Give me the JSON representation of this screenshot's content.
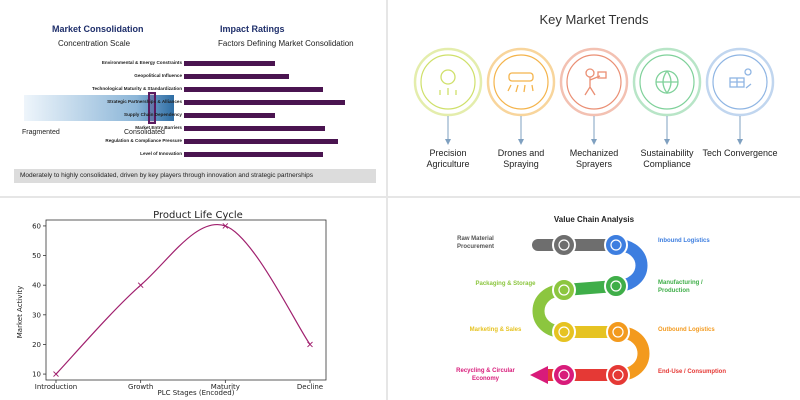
{
  "consolidation": {
    "title": "Market Consolidation",
    "subtitle": "Concentration Scale",
    "scale_left": "Fragmented",
    "scale_right": "Consolidated",
    "marker_position": 0.85,
    "ratings_title": "Impact Ratings",
    "ratings_subtitle": "Factors Defining Market Consolidation",
    "factors": [
      {
        "label": "Environmental & Energy Constraints",
        "value": 0.55
      },
      {
        "label": "Geopolitical Influence",
        "value": 0.63
      },
      {
        "label": "Technological Maturity & Standardization",
        "value": 0.84
      },
      {
        "label": "Strategic Partnerships & Alliances",
        "value": 0.97
      },
      {
        "label": "Supply Chain Dependency",
        "value": 0.55
      },
      {
        "label": "Market Entry Barriers",
        "value": 0.85
      },
      {
        "label": "Regulation & Compliance Pressure",
        "value": 0.93
      },
      {
        "label": "Level of Innovation",
        "value": 0.84
      }
    ],
    "summary": "Moderately to highly consolidated, driven by key players through innovation and strategic partnerships",
    "colors": {
      "bar": "#4a1450",
      "title": "#1f2f6b"
    }
  },
  "trends": {
    "title": "Key Market Trends",
    "items": [
      {
        "label": "Precision Agriculture",
        "color": "#cfe06a",
        "icon": "leaf-hand-icon"
      },
      {
        "label": "Drones and Spraying",
        "color": "#f4b44c",
        "icon": "drone-icon"
      },
      {
        "label": "Mechanized Sprayers",
        "color": "#ea8f74",
        "icon": "sprayer-worker-icon"
      },
      {
        "label": "Sustainability Compliance",
        "color": "#7fd19a",
        "icon": "globe-leaf-icon"
      },
      {
        "label": "Tech Convergence",
        "color": "#8fb5e3",
        "icon": "solar-tech-icon"
      }
    ]
  },
  "chart_data": {
    "type": "line",
    "title": "Product Life Cycle",
    "xlabel": "PLC Stages (Encoded)",
    "ylabel": "Market Activity",
    "categories": [
      "Introduction",
      "Growth",
      "Maturity",
      "Decline"
    ],
    "series": [
      {
        "name": "Market Activity",
        "values": [
          10,
          40,
          60,
          20
        ]
      }
    ],
    "ylim": [
      8,
      62
    ],
    "yticks": [
      "10",
      "20",
      "30",
      "40",
      "50",
      "60"
    ],
    "grid": false,
    "color": "#a0206e"
  },
  "value_chain": {
    "title": "Value Chain Analysis",
    "stages": [
      {
        "label": "Raw Material Procurement",
        "color": "#6e6e6e",
        "side": "left",
        "icon": "truck-icon"
      },
      {
        "label": "Inbound Logistics",
        "color": "#3d7ee0",
        "side": "right",
        "icon": "gears-icon"
      },
      {
        "label": "Manufacturing / Production",
        "color": "#3fae49",
        "side": "right",
        "icon": "factory-icon"
      },
      {
        "label": "Packaging & Storage",
        "color": "#8cc63f",
        "side": "left",
        "icon": "box-icon"
      },
      {
        "label": "Marketing & Sales",
        "color": "#e6c322",
        "side": "left",
        "icon": "sale-icon"
      },
      {
        "label": "Outbound Logistics",
        "color": "#f39a1e",
        "side": "right",
        "icon": "delivery-icon"
      },
      {
        "label": "End-Use / Consumption",
        "color": "#e53935",
        "side": "right",
        "icon": "network-icon"
      },
      {
        "label": "Recycling & Circular Economy",
        "color": "#d81b7a",
        "side": "left",
        "icon": "recycle-icon"
      }
    ]
  }
}
